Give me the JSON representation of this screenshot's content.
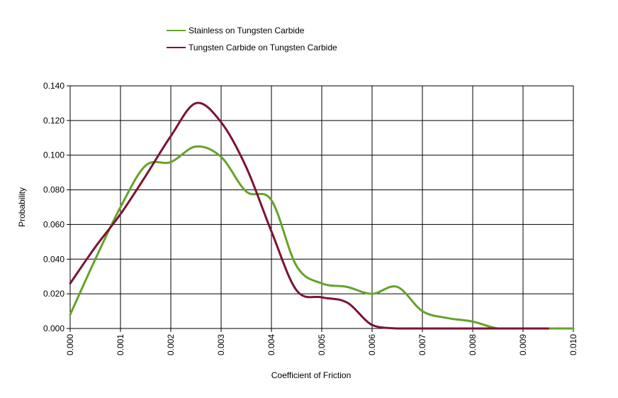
{
  "chart_data": {
    "type": "line",
    "title": "",
    "xlabel": "Coefficient of Friction",
    "ylabel": "Probability",
    "xlim": [
      0,
      0.01
    ],
    "ylim": [
      0,
      0.14
    ],
    "grid": true,
    "legend_position": "top-left",
    "x_ticks": [
      0,
      0.001,
      0.002,
      0.003,
      0.004,
      0.005,
      0.006,
      0.007,
      0.008,
      0.009,
      0.01
    ],
    "x_tick_labels": [
      "0.000",
      "0.001",
      "0.002",
      "0.003",
      "0.004",
      "0.005",
      "0.006",
      "0.007",
      "0.008",
      "0.009",
      "0.010"
    ],
    "y_ticks": [
      0,
      0.02,
      0.04,
      0.06,
      0.08,
      0.1,
      0.12,
      0.14
    ],
    "y_tick_labels": [
      "0.000",
      "0.020",
      "0.040",
      "0.060",
      "0.080",
      "0.100",
      "0.120",
      "0.140"
    ],
    "series": [
      {
        "name": "Stainless on Tungsten Carbide",
        "color": "#66a22a",
        "x": [
          0.0,
          0.0005,
          0.001,
          0.0015,
          0.002,
          0.0025,
          0.003,
          0.0035,
          0.004,
          0.0045,
          0.005,
          0.0055,
          0.006,
          0.0065,
          0.007,
          0.0075,
          0.008,
          0.0085,
          0.009,
          0.0095,
          0.01
        ],
        "y": [
          0.008,
          0.04,
          0.07,
          0.094,
          0.096,
          0.105,
          0.099,
          0.079,
          0.074,
          0.036,
          0.026,
          0.024,
          0.02,
          0.024,
          0.01,
          0.006,
          0.004,
          0.0,
          0.0,
          0.0,
          0.0
        ]
      },
      {
        "name": "Tungsten Carbide on Tungsten Carbide",
        "color": "#7b1334",
        "x": [
          0.0,
          0.0005,
          0.001,
          0.0015,
          0.002,
          0.0025,
          0.003,
          0.0035,
          0.004,
          0.0045,
          0.005,
          0.0055,
          0.006,
          0.0065,
          0.007,
          0.0075,
          0.008,
          0.0085,
          0.009,
          0.0095
        ],
        "y": [
          0.026,
          0.047,
          0.066,
          0.088,
          0.111,
          0.13,
          0.119,
          0.093,
          0.056,
          0.022,
          0.018,
          0.015,
          0.002,
          0.0,
          0.0,
          0.0,
          0.0,
          0.0,
          0.0,
          0.0
        ]
      }
    ]
  }
}
